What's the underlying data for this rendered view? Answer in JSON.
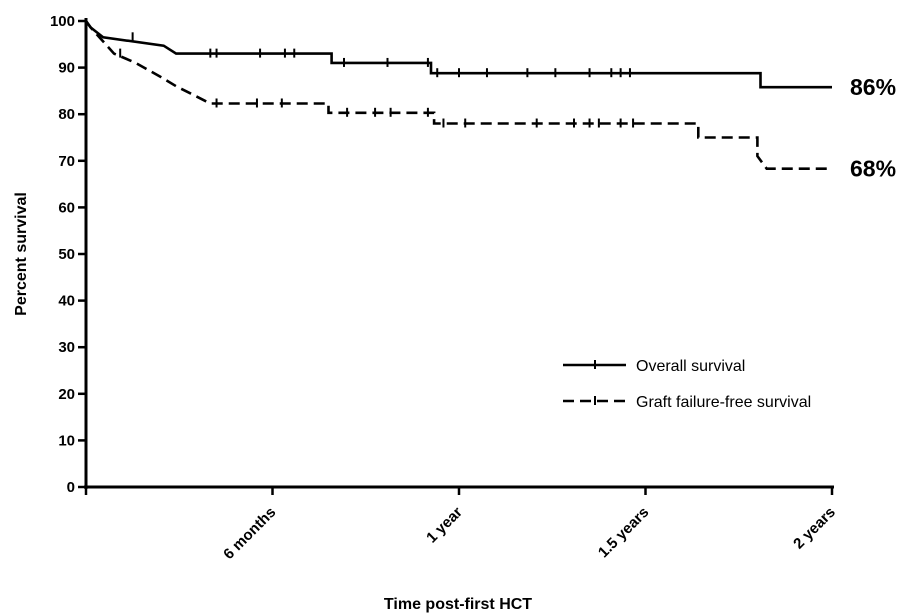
{
  "chart_data": {
    "type": "line",
    "title": "",
    "xlabel": "Time post-first HCT",
    "ylabel": "Percent survival",
    "xlim": [
      0,
      24
    ],
    "ylim": [
      0,
      100
    ],
    "x_unit": "months",
    "y_ticks": [
      0,
      10,
      20,
      30,
      40,
      50,
      60,
      70,
      80,
      90,
      100
    ],
    "x_ticks": [
      {
        "value": 6,
        "label": "6 months"
      },
      {
        "value": 12,
        "label": "1 year"
      },
      {
        "value": 18,
        "label": "1.5 years"
      },
      {
        "value": 24,
        "label": "2 years"
      }
    ],
    "grid": false,
    "legend_position": "bottom-right",
    "series": [
      {
        "name": "Overall survival",
        "style": "solid",
        "end_label": "86%",
        "steps": [
          [
            0,
            100
          ],
          [
            0.15,
            98.6
          ],
          [
            0.55,
            96.5
          ],
          [
            2.5,
            94.7
          ],
          [
            2.9,
            93
          ],
          [
            7.9,
            93
          ],
          [
            7.9,
            91
          ],
          [
            11.1,
            91
          ],
          [
            11.1,
            88.8
          ],
          [
            21.7,
            88.8
          ],
          [
            21.7,
            85.8
          ],
          [
            24,
            85.8
          ]
        ],
        "censored": [
          [
            1.5,
            96.5
          ],
          [
            4.0,
            93
          ],
          [
            4.2,
            93
          ],
          [
            5.6,
            93
          ],
          [
            6.4,
            93
          ],
          [
            6.7,
            93
          ],
          [
            8.3,
            91
          ],
          [
            9.7,
            91
          ],
          [
            11.0,
            91
          ],
          [
            11.3,
            88.8
          ],
          [
            12.0,
            88.8
          ],
          [
            12.9,
            88.8
          ],
          [
            14.2,
            88.8
          ],
          [
            15.1,
            88.8
          ],
          [
            16.2,
            88.8
          ],
          [
            16.9,
            88.8
          ],
          [
            17.2,
            88.8
          ],
          [
            17.5,
            88.8
          ]
        ]
      },
      {
        "name": "Graft failure-free survival",
        "style": "dashed",
        "end_label": "68%",
        "steps": [
          [
            0,
            100
          ],
          [
            0.15,
            98.6
          ],
          [
            0.5,
            96
          ],
          [
            0.9,
            93
          ],
          [
            1.6,
            91
          ],
          [
            2.4,
            88
          ],
          [
            2.9,
            86
          ],
          [
            3.5,
            84
          ],
          [
            4.0,
            82.3
          ],
          [
            7.8,
            82.3
          ],
          [
            7.8,
            80.3
          ],
          [
            11.2,
            80.3
          ],
          [
            11.2,
            78
          ],
          [
            19.7,
            78
          ],
          [
            19.7,
            75
          ],
          [
            21.6,
            75
          ],
          [
            21.6,
            71
          ],
          [
            21.9,
            68.3
          ],
          [
            24,
            68.3
          ]
        ],
        "censored": [
          [
            1.1,
            93
          ],
          [
            4.2,
            82.3
          ],
          [
            5.5,
            82.3
          ],
          [
            6.3,
            82.3
          ],
          [
            8.4,
            80.3
          ],
          [
            9.3,
            80.3
          ],
          [
            9.8,
            80.3
          ],
          [
            11.0,
            80.3
          ],
          [
            11.5,
            78
          ],
          [
            12.2,
            78
          ],
          [
            14.5,
            78
          ],
          [
            15.7,
            78
          ],
          [
            16.2,
            78
          ],
          [
            16.5,
            78
          ],
          [
            17.2,
            78
          ],
          [
            17.6,
            78
          ]
        ]
      }
    ],
    "legend_entries": [
      "Overall survival",
      "Graft failure-free survival"
    ]
  }
}
